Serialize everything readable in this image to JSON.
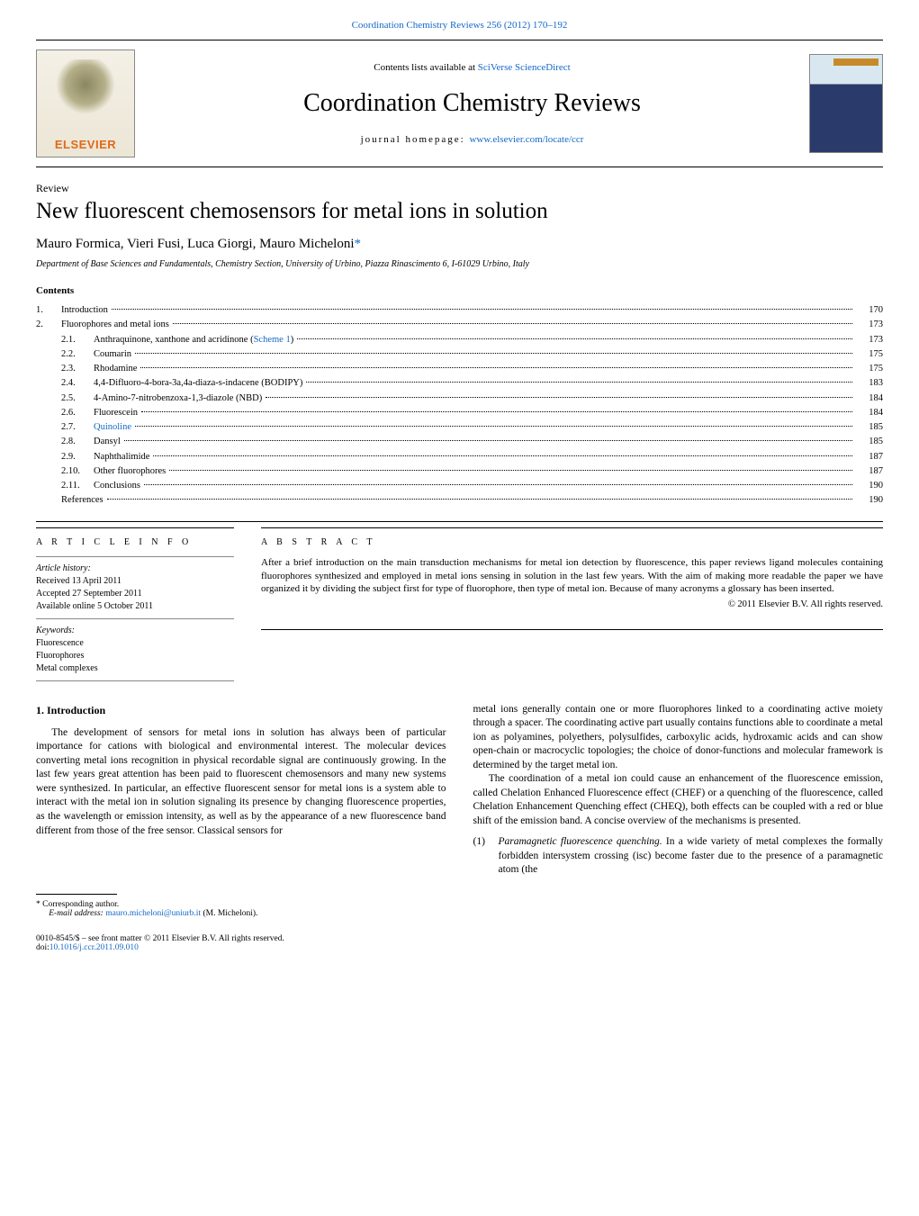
{
  "journal_ref_line": "Coordination Chemistry Reviews 256 (2012) 170–192",
  "header": {
    "contents_prefix": "Contents lists available at ",
    "contents_link": "SciVerse ScienceDirect",
    "journal_title": "Coordination Chemistry Reviews",
    "homepage_prefix": "journal homepage: ",
    "homepage_link": "www.elsevier.com/locate/ccr",
    "publisher_brand": "ELSEVIER"
  },
  "article": {
    "type_label": "Review",
    "title": "New fluorescent chemosensors for metal ions in solution",
    "authors": "Mauro Formica, Vieri Fusi, Luca Giorgi, Mauro Micheloni",
    "corr_marker": "*",
    "affiliation": "Department of Base Sciences and Fundamentals, Chemistry Section, University of Urbino, Piazza Rinascimento 6, I-61029 Urbino, Italy"
  },
  "contents": {
    "heading": "Contents",
    "items": [
      {
        "level": 1,
        "num": "1.",
        "label": "Introduction",
        "page": "170"
      },
      {
        "level": 1,
        "num": "2.",
        "label": "Fluorophores and metal ions",
        "page": "173"
      },
      {
        "level": 2,
        "num": "2.1.",
        "label": "Anthraquinone, xanthone and acridinone (",
        "link": "Scheme 1",
        "suffix": ")",
        "page": "173"
      },
      {
        "level": 2,
        "num": "2.2.",
        "label": "Coumarin",
        "page": "175"
      },
      {
        "level": 2,
        "num": "2.3.",
        "label": "Rhodamine",
        "page": "175"
      },
      {
        "level": 2,
        "num": "2.4.",
        "label": "4,4-Difluoro-4-bora-3a,4a-diaza-s-indacene (BODIPY)",
        "page": "183"
      },
      {
        "level": 2,
        "num": "2.5.",
        "label": "4-Amino-7-nitrobenzoxa-1,3-diazole (NBD)",
        "page": "184"
      },
      {
        "level": 2,
        "num": "2.6.",
        "label": "Fluorescein",
        "page": "184"
      },
      {
        "level": 2,
        "num": "2.7.",
        "label": "Quinoline",
        "link_full": true,
        "page": "185"
      },
      {
        "level": 2,
        "num": "2.8.",
        "label": "Dansyl",
        "page": "185"
      },
      {
        "level": 2,
        "num": "2.9.",
        "label": "Naphthalimide",
        "page": "187"
      },
      {
        "level": 2,
        "num": "2.10.",
        "label": "Other fluorophores",
        "page": "187"
      },
      {
        "level": 2,
        "num": "2.11.",
        "label": "Conclusions",
        "page": "190"
      },
      {
        "level": 1,
        "num": "",
        "label": "References",
        "page": "190"
      }
    ]
  },
  "article_info": {
    "heading": "A R T I C L E   I N F O",
    "history_label": "Article history:",
    "received": "Received 13 April 2011",
    "accepted": "Accepted 27 September 2011",
    "online": "Available online 5 October 2011",
    "keywords_label": "Keywords:",
    "keywords": [
      "Fluorescence",
      "Fluorophores",
      "Metal complexes"
    ]
  },
  "abstract": {
    "heading": "A B S T R A C T",
    "text": "After a brief introduction on the main transduction mechanisms for metal ion detection by fluorescence, this paper reviews ligand molecules containing fluorophores synthesized and employed in metal ions sensing in solution in the last few years. With the aim of making more readable the paper we have organized it by dividing the subject first for type of fluorophore, then type of metal ion. Because of many acronyms a glossary has been inserted.",
    "copyright": "© 2011 Elsevier B.V. All rights reserved."
  },
  "body": {
    "intro_heading": "1. Introduction",
    "col1_p1": "The development of sensors for metal ions in solution has always been of particular importance for cations with biological and environmental interest. The molecular devices converting metal ions recognition in physical recordable signal are continuously growing. In the last few years great attention has been paid to fluorescent chemosensors and many new systems were synthesized. In particular, an effective fluorescent sensor for metal ions is a system able to interact with the metal ion in solution signaling its presence by changing fluorescence properties, as the wavelength or emission intensity, as well as by the appearance of a new fluorescence band different from those of the free sensor. Classical sensors for",
    "col2_p1": "metal ions generally contain one or more fluorophores linked to a coordinating active moiety through a spacer. The coordinating active part usually contains functions able to coordinate a metal ion as polyamines, polyethers, polysulfides, carboxylic acids, hydroxamic acids and can show open-chain or macrocyclic topologies; the choice of donor-functions and molecular framework is determined by the target metal ion.",
    "col2_p2": "The coordination of a metal ion could cause an enhancement of the fluorescence emission, called Chelation Enhanced Fluorescence effect (CHEF) or a quenching of the fluorescence, called Chelation Enhancement Quenching effect (CHEQ), both effects can be coupled with a red or blue shift of the emission band. A concise overview of the mechanisms is presented.",
    "list_marker": "(1)",
    "list_text_prefix": "Paramagnetic fluorescence quenching.",
    "list_text_body": " In a wide variety of metal complexes the formally forbidden intersystem crossing (isc) become faster due to the presence of a paramagnetic atom (the"
  },
  "footnotes": {
    "corr_label": "Corresponding author.",
    "email_label": "E-mail address: ",
    "email": "mauro.micheloni@uniurb.it",
    "email_suffix": " (M. Micheloni)."
  },
  "doi": {
    "line1": "0010-8545/$ – see front matter © 2011 Elsevier B.V. All rights reserved.",
    "prefix": "doi:",
    "link": "10.1016/j.ccr.2011.09.010"
  },
  "colors": {
    "link": "#1468c7",
    "text": "#000000",
    "background": "#ffffff",
    "orange": "#e06a1a"
  }
}
